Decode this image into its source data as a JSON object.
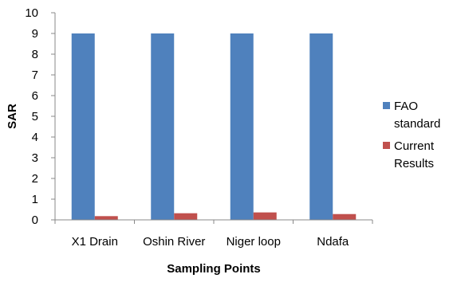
{
  "chart_data": {
    "type": "bar",
    "categories": [
      "X1 Drain",
      "Oshin River",
      "Niger loop",
      "Ndafa"
    ],
    "series": [
      {
        "name": "FAO standard",
        "color": "#4F81BD",
        "values": [
          9,
          9,
          9,
          9
        ]
      },
      {
        "name": "Current Results",
        "color": "#C0504D",
        "values": [
          0.18,
          0.32,
          0.36,
          0.28
        ]
      }
    ],
    "xlabel": "Sampling Points",
    "ylabel": "SAR",
    "ylim": [
      0,
      10
    ],
    "yticks": [
      0,
      1,
      2,
      3,
      4,
      5,
      6,
      7,
      8,
      9,
      10
    ],
    "grid": false,
    "legend": {
      "position": "right",
      "entries": [
        {
          "lines": [
            "FAO",
            "standard"
          ]
        },
        {
          "lines": [
            "Current",
            "Results"
          ]
        }
      ]
    }
  }
}
